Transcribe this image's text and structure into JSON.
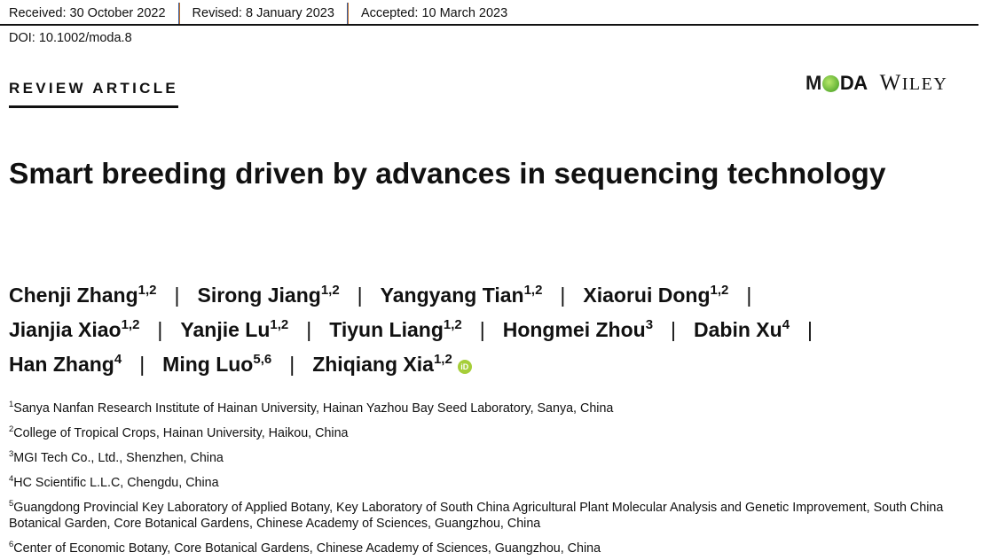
{
  "header": {
    "received": "Received: 30 October 2022",
    "revised": "Revised: 8 January 2023",
    "accepted": "Accepted: 10 March 2023",
    "doi": "DOI: 10.1002/moda.8"
  },
  "article_type": "REVIEW ARTICLE",
  "logos": {
    "moda": "MODA",
    "wiley": "WILEY"
  },
  "title": "Smart breeding driven by advances in sequencing technology",
  "authors": [
    {
      "name": "Chenji Zhang",
      "aff": "1,2"
    },
    {
      "name": "Sirong Jiang",
      "aff": "1,2"
    },
    {
      "name": "Yangyang Tian",
      "aff": "1,2"
    },
    {
      "name": "Xiaorui Dong",
      "aff": "1,2"
    },
    {
      "name": "Jianjia Xiao",
      "aff": "1,2"
    },
    {
      "name": "Yanjie Lu",
      "aff": "1,2"
    },
    {
      "name": "Tiyun Liang",
      "aff": "1,2"
    },
    {
      "name": "Hongmei Zhou",
      "aff": "3"
    },
    {
      "name": "Dabin Xu",
      "aff": "4"
    },
    {
      "name": "Han Zhang",
      "aff": "4"
    },
    {
      "name": "Ming Luo",
      "aff": "5,6"
    },
    {
      "name": "Zhiqiang Xia",
      "aff": "1,2"
    }
  ],
  "separator": "|",
  "orcid_icon": "orcid-icon",
  "orcid_label": "iD",
  "affiliations": [
    {
      "n": "1",
      "text": "Sanya Nanfan Research Institute of Hainan University, Hainan Yazhou Bay Seed Laboratory, Sanya, China"
    },
    {
      "n": "2",
      "text": "College of Tropical Crops, Hainan University, Haikou, China"
    },
    {
      "n": "3",
      "text": "MGI Tech Co., Ltd., Shenzhen, China"
    },
    {
      "n": "4",
      "text": "HC Scientific L.L.C, Chengdu, China"
    },
    {
      "n": "5",
      "text": "Guangdong Provincial Key Laboratory of Applied Botany, Key Laboratory of South China Agricultural Plant Molecular Analysis and Genetic Improvement, South China Botanical Garden, Core Botanical Gardens, Chinese Academy of Sciences, Guangzhou, China"
    },
    {
      "n": "6",
      "text": "Center of Economic Botany, Core Botanical Gardens, Chinese Academy of Sciences, Guangzhou, China"
    }
  ],
  "colors": {
    "orcid": "#a6ce39",
    "moda_green": "#5bb52a",
    "separator": "#c0702a"
  }
}
